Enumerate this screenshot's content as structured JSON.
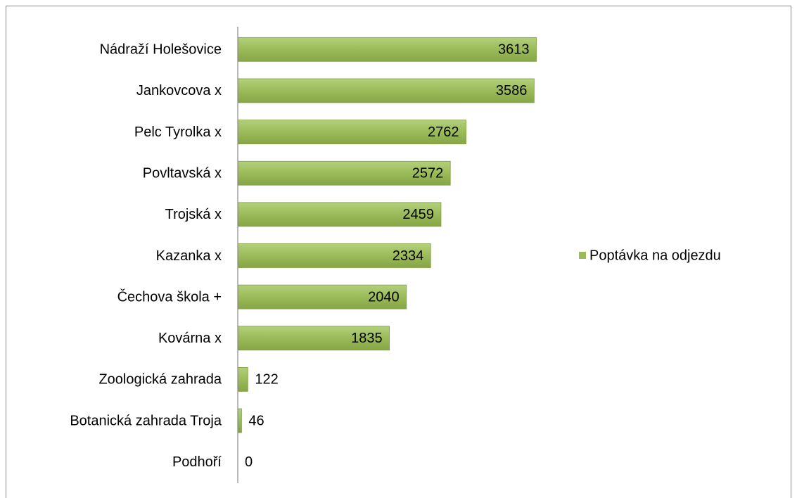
{
  "chart_data": {
    "type": "barh",
    "categories": [
      "Nádraží Holešovice",
      "Jankovcova x",
      "Pelc Tyrolka x",
      "Povltavská x",
      "Trojská x",
      "Kazanka x",
      "Čechova škola +",
      "Kovárna x",
      "Zoologická zahrada",
      "Botanická zahrada Troja",
      "Podhoří"
    ],
    "series": [
      {
        "name": "Poptávka na odjezdu",
        "color": "#9bbb59",
        "values": [
          3613,
          3586,
          2762,
          2572,
          2459,
          2334,
          2040,
          1835,
          122,
          46,
          0
        ]
      }
    ],
    "xlim": [
      0,
      4000
    ],
    "legend": "right",
    "grid": false
  }
}
